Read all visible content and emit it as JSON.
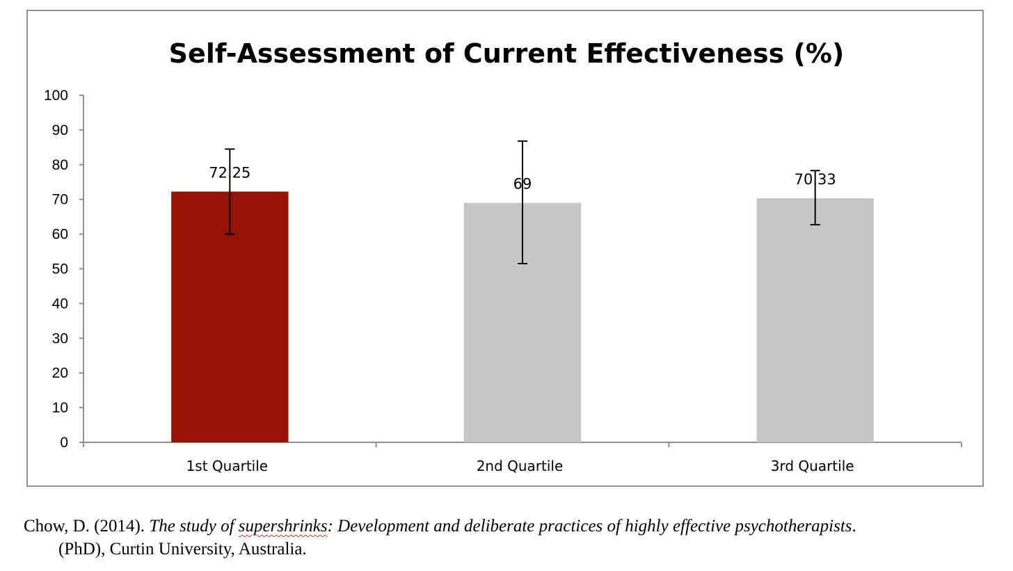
{
  "chart_data": {
    "type": "bar",
    "title": "Self-Assessment of Current Effectiveness (%)",
    "xlabel": "",
    "ylabel": "",
    "ylim": [
      0,
      100
    ],
    "yticks": [
      "0",
      "10",
      "20",
      "30",
      "40",
      "50",
      "60",
      "70",
      "80",
      "90",
      "100"
    ],
    "categories": [
      "1st Quartile",
      "2nd Quartile",
      "3rd Quartile"
    ],
    "values": [
      72.25,
      69,
      70.33
    ],
    "data_labels": [
      "72.25",
      "69",
      "70.33"
    ],
    "error_bars": [
      {
        "low": 60,
        "high": 84.5
      },
      {
        "low": 51.5,
        "high": 86.8
      },
      {
        "low": 62.7,
        "high": 78.3
      }
    ],
    "bar_colors": [
      "#961304",
      "#c6c6c6",
      "#c6c6c6"
    ],
    "grid": false,
    "legend": "none"
  },
  "citation": {
    "author": "Chow, D. (2014). ",
    "title_start": "The study of ",
    "title_word": "supershrinks",
    "title_end": ": Development and deliberate practices of highly effective psychotherapists",
    "after_title": ".",
    "line2": "(PhD), Curtin University, Australia."
  }
}
